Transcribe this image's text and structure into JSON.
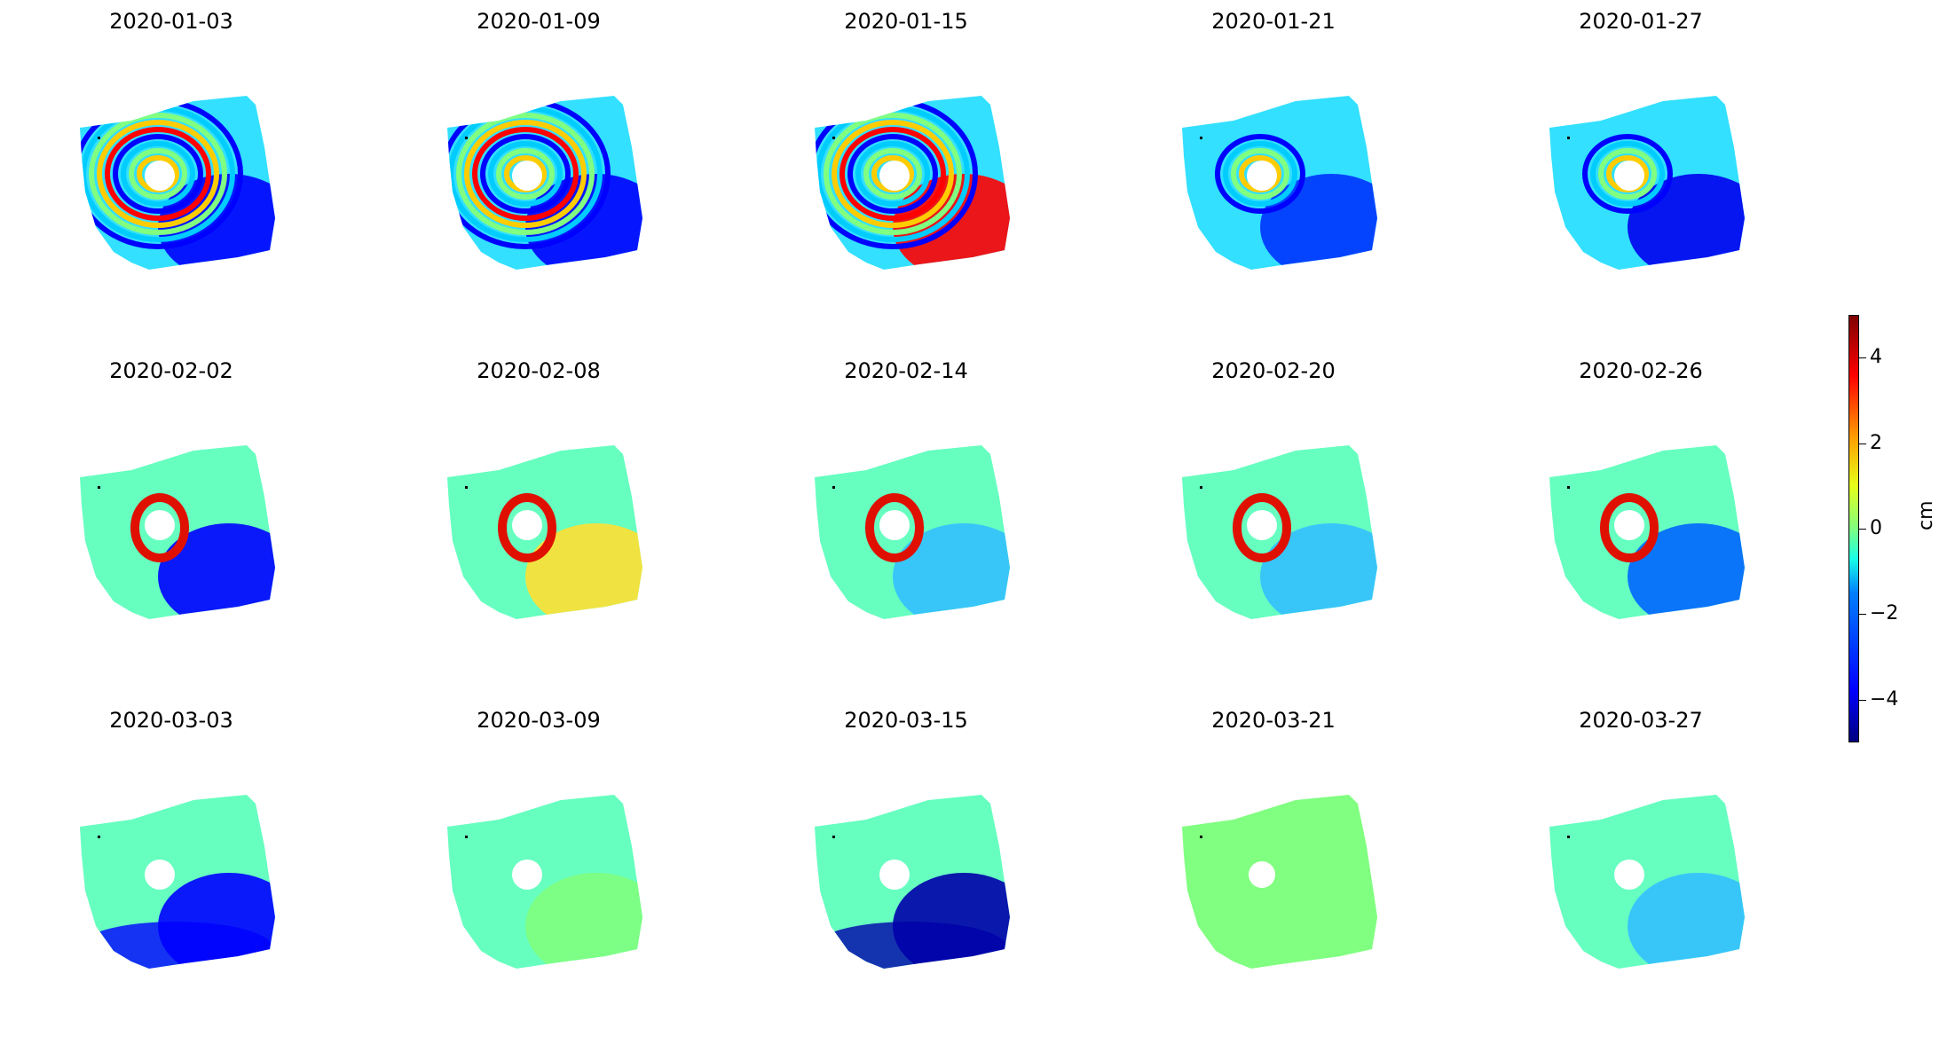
{
  "figure": {
    "panels": [
      {
        "date": "2020-01-03",
        "pattern": "fringes-dense",
        "accent": "#0000ff"
      },
      {
        "date": "2020-01-09",
        "pattern": "fringes-dense",
        "accent": "#0000ff"
      },
      {
        "date": "2020-01-15",
        "pattern": "fringes-dense",
        "accent": "#ff0000"
      },
      {
        "date": "2020-01-21",
        "pattern": "fringes-moderate",
        "accent": "#0033ff"
      },
      {
        "date": "2020-01-27",
        "pattern": "fringes-moderate",
        "accent": "#0000ee"
      },
      {
        "date": "2020-02-02",
        "pattern": "smooth-red-ring",
        "accent": "#0000ff"
      },
      {
        "date": "2020-02-08",
        "pattern": "smooth-red-ring",
        "accent": "#ffe033"
      },
      {
        "date": "2020-02-14",
        "pattern": "smooth-red-ring",
        "accent": "#33c0ff"
      },
      {
        "date": "2020-02-20",
        "pattern": "smooth-red-ring",
        "accent": "#33c0ff"
      },
      {
        "date": "2020-02-26",
        "pattern": "smooth-red-ring",
        "accent": "#0066ff"
      },
      {
        "date": "2020-03-03",
        "pattern": "smooth-blue-south",
        "accent": "#0000ff"
      },
      {
        "date": "2020-03-09",
        "pattern": "smooth-weak",
        "accent": "#80ff80"
      },
      {
        "date": "2020-03-15",
        "pattern": "smooth-blue-south",
        "accent": "#0000aa"
      },
      {
        "date": "2020-03-21",
        "pattern": "flat",
        "accent": "#80ff80"
      },
      {
        "date": "2020-03-27",
        "pattern": "smooth-weak",
        "accent": "#33c0ff"
      }
    ]
  },
  "colorbar": {
    "unit": "cm",
    "range": [
      -5,
      5
    ],
    "ticks": [
      "4",
      "2",
      "0",
      "−2",
      "−4"
    ],
    "tick_values": [
      4,
      2,
      0,
      -2,
      -4
    ],
    "colormap": "jet"
  }
}
